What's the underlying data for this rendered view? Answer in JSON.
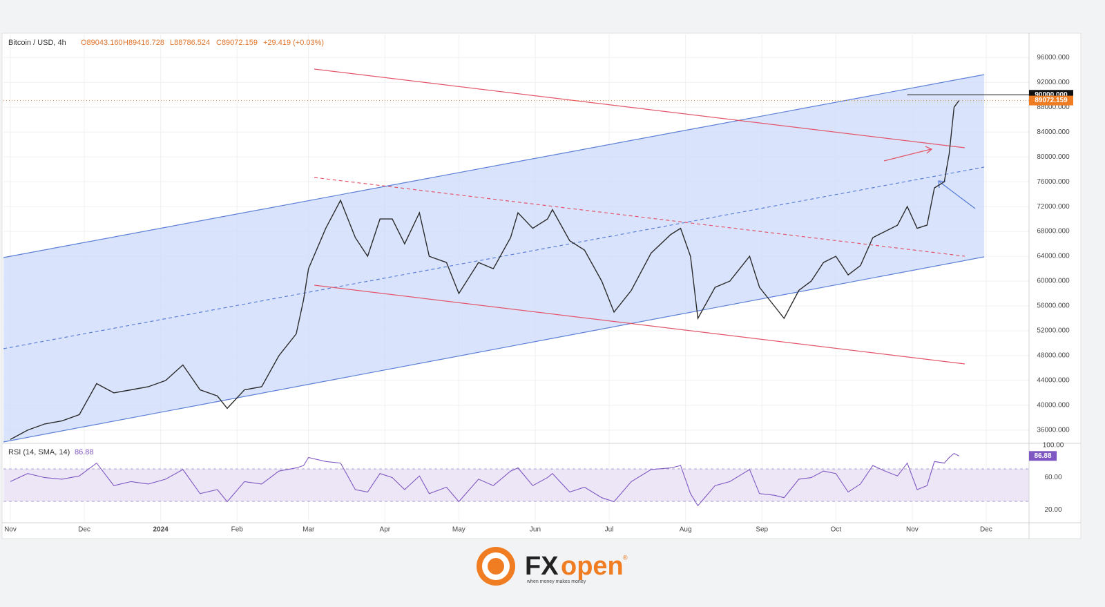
{
  "chart_data": [
    {
      "type": "line",
      "title": "Bitcoin / USD, 4h",
      "open": "O89043.160",
      "high": "H89416.728",
      "low": "L88786.524",
      "close": "C89072.159",
      "change": "+29.419 (+0.03%)",
      "color": "#2b2b2b",
      "last_color": "#f07d22",
      "x": [
        0,
        7,
        14,
        21,
        28,
        35,
        42,
        49,
        56,
        63,
        70,
        77,
        84,
        88,
        95,
        102,
        109,
        116,
        119,
        121,
        128,
        134,
        140,
        145,
        150,
        155,
        160,
        166,
        170,
        177,
        182,
        190,
        196,
        203,
        206,
        212,
        218,
        220,
        227,
        233,
        240,
        245,
        252,
        260,
        268,
        272,
        276,
        279,
        286,
        292,
        300,
        304,
        310,
        314,
        320,
        325,
        330,
        335,
        340,
        345,
        350,
        355,
        360,
        364,
        368,
        372,
        375,
        379,
        381,
        383,
        385
      ],
      "values": [
        34500,
        36000,
        37000,
        37500,
        38500,
        43500,
        42000,
        42500,
        43000,
        44000,
        46500,
        42500,
        41500,
        39500,
        42500,
        43000,
        48000,
        51500,
        57000,
        62000,
        68500,
        73000,
        67000,
        64000,
        70000,
        70000,
        66000,
        71000,
        64000,
        63000,
        58000,
        63000,
        62000,
        67000,
        71000,
        68500,
        70000,
        71500,
        66500,
        65000,
        60000,
        55000,
        58500,
        64500,
        67500,
        68500,
        64000,
        54000,
        59000,
        60000,
        64000,
        59000,
        56000,
        54000,
        58500,
        60000,
        63000,
        64000,
        61000,
        62500,
        67000,
        68000,
        69000,
        72000,
        68500,
        69000,
        75000,
        76000,
        80500,
        88000,
        89072.159
      ],
      "level": {
        "value": 90000,
        "label": "90000.000"
      },
      "xlim": [
        -2.8,
        413.4
      ],
      "ylim": [
        34100,
        99700
      ],
      "yticks": [
        {
          "value": 36000,
          "label": "36000.000"
        },
        {
          "value": 40000,
          "label": "40000.000"
        },
        {
          "value": 44000,
          "label": "44000.000"
        },
        {
          "value": 48000,
          "label": "48000.000"
        },
        {
          "value": 52000,
          "label": "52000.000"
        },
        {
          "value": 56000,
          "label": "56000.000"
        },
        {
          "value": 60000,
          "label": "60000.000"
        },
        {
          "value": 64000,
          "label": "64000.000"
        },
        {
          "value": 68000,
          "label": "68000.000"
        },
        {
          "value": 72000,
          "label": "72000.000"
        },
        {
          "value": 76000,
          "label": "76000.000"
        },
        {
          "value": 80000,
          "label": "80000.000"
        },
        {
          "value": 84000,
          "label": "84000.000"
        },
        {
          "value": 88000,
          "label": "88000.000"
        },
        {
          "value": 92000,
          "label": "92000.000"
        },
        {
          "value": 96000,
          "label": "96000.000"
        }
      ],
      "grid": true
    },
    {
      "type": "line",
      "title": "RSI (14, SMA, 14)",
      "color": "#7e57c2",
      "x": [
        0,
        7,
        14,
        21,
        28,
        35,
        42,
        49,
        56,
        63,
        70,
        77,
        84,
        88,
        95,
        102,
        109,
        116,
        119,
        121,
        128,
        134,
        140,
        145,
        150,
        155,
        160,
        166,
        170,
        177,
        182,
        190,
        196,
        203,
        206,
        212,
        218,
        220,
        227,
        233,
        240,
        245,
        252,
        260,
        268,
        272,
        276,
        279,
        286,
        292,
        300,
        304,
        310,
        314,
        320,
        325,
        330,
        335,
        340,
        345,
        350,
        355,
        360,
        364,
        368,
        372,
        375,
        379,
        381,
        383,
        385
      ],
      "values": [
        55,
        65,
        60,
        58,
        62,
        78,
        50,
        55,
        52,
        58,
        70,
        40,
        45,
        30,
        55,
        52,
        68,
        72,
        75,
        85,
        80,
        78,
        45,
        42,
        65,
        60,
        45,
        62,
        40,
        48,
        30,
        58,
        50,
        68,
        72,
        50,
        60,
        65,
        42,
        48,
        35,
        30,
        55,
        70,
        72,
        75,
        40,
        25,
        50,
        55,
        70,
        40,
        38,
        35,
        58,
        60,
        68,
        65,
        42,
        52,
        75,
        68,
        62,
        78,
        45,
        50,
        80,
        78,
        85,
        90,
        86.88
      ],
      "xlim": [
        -2.8,
        413.4
      ],
      "ylim": [
        5.5,
        100
      ],
      "yticks": [
        {
          "value": 20,
          "label": "20.00"
        },
        {
          "value": 60,
          "label": "60.00"
        },
        {
          "value": 100,
          "label": "100.00"
        }
      ],
      "xticks": [
        {
          "value": 0,
          "label": "Nov"
        },
        {
          "value": 30,
          "label": "Dec"
        },
        {
          "value": 61,
          "label": "2024"
        },
        {
          "value": 92,
          "label": "Feb"
        },
        {
          "value": 121,
          "label": "Mar"
        },
        {
          "value": 152,
          "label": "Apr"
        },
        {
          "value": 182,
          "label": "May"
        },
        {
          "value": 213,
          "label": "Jun"
        },
        {
          "value": 243,
          "label": "Jul"
        },
        {
          "value": 274,
          "label": "Aug"
        },
        {
          "value": 305,
          "label": "Sep"
        },
        {
          "value": 335,
          "label": "Oct"
        },
        {
          "value": 366,
          "label": "Nov"
        },
        {
          "value": 396,
          "label": "Dec"
        }
      ]
    }
  ],
  "logo": {
    "brand_fx": "FX",
    "brand_open": "open",
    "registered": "®",
    "tagline": "when money makes money"
  }
}
